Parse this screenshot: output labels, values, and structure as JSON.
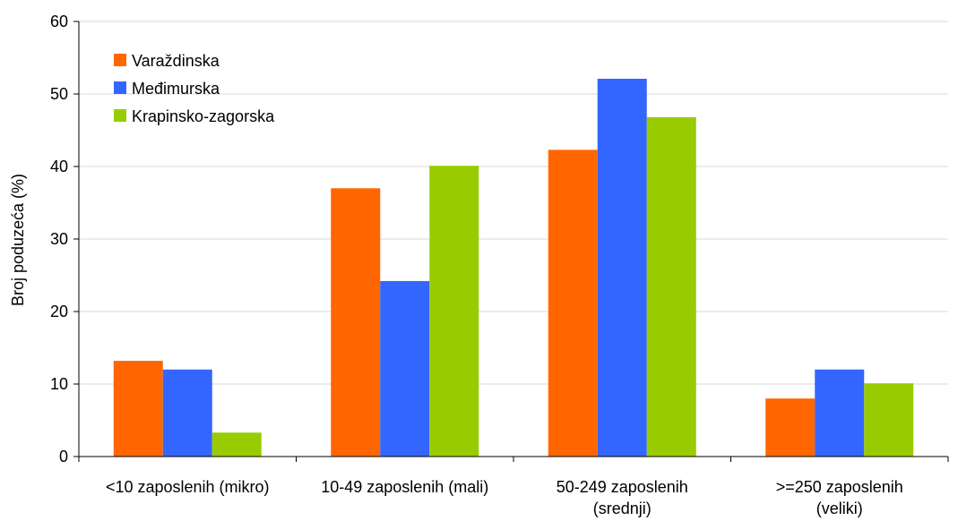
{
  "chart_data": {
    "type": "bar",
    "ylabel": "Broj poduzeća (%)",
    "xlabel": "",
    "ylim": [
      0,
      60
    ],
    "yticks": [
      0,
      10,
      20,
      30,
      40,
      50,
      60
    ],
    "grid": true,
    "legend_position": "top-left",
    "categories": [
      [
        "<10 zaposlenih (mikro)"
      ],
      [
        "10-49 zaposlenih (mali)"
      ],
      [
        "50-249 zaposlenih",
        "(srednji)"
      ],
      [
        ">=250 zaposlenih",
        "(veliki)"
      ]
    ],
    "series": [
      {
        "name": "Varaždinska",
        "color": "#ff6600",
        "values": [
          13.2,
          37.0,
          42.3,
          8.0
        ]
      },
      {
        "name": "Međimurska",
        "color": "#3366ff",
        "values": [
          12.0,
          24.2,
          52.1,
          12.0
        ]
      },
      {
        "name": "Krapinsko-zagorska",
        "color": "#99cc00",
        "values": [
          3.3,
          40.1,
          46.8,
          10.1
        ]
      }
    ]
  }
}
